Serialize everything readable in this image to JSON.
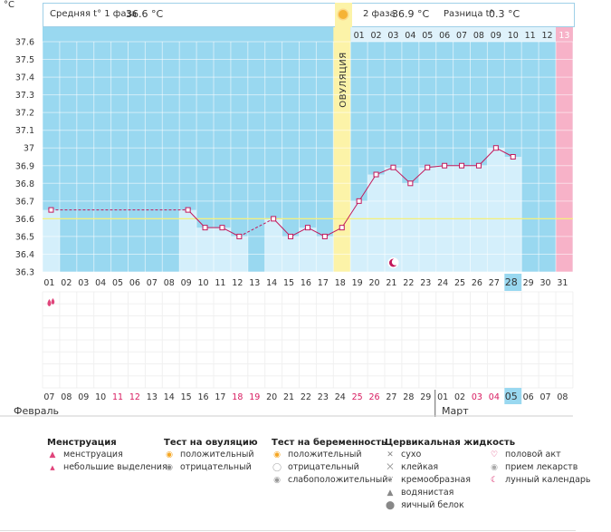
{
  "chart_data": {
    "type": "line",
    "y_unit_label": "°C",
    "ylim": [
      36.3,
      37.6
    ],
    "yticks": [
      "37.6",
      "37.5",
      "37.4",
      "37.3",
      "37.2",
      "37.1",
      "37",
      "36.9",
      "36.8",
      "36.7",
      "36.6",
      "36.5",
      "36.4",
      "36.3"
    ],
    "header": {
      "phase1_label": "Средняя t° 1 фаза",
      "phase1_value": "36.6 °C",
      "phase2_label": "2 фаза",
      "phase2_value": "36.9 °C",
      "diff_label": "Разница t°",
      "diff_value": "0.3 °C"
    },
    "ovulation_label": "ОВУЛЯЦИЯ",
    "ovulation_day": 18,
    "coverline": 36.6,
    "days": [
      "01",
      "02",
      "03",
      "04",
      "05",
      "06",
      "07",
      "08",
      "09",
      "10",
      "11",
      "12",
      "13",
      "14",
      "15",
      "16",
      "17",
      "18",
      "19",
      "20",
      "21",
      "22",
      "23",
      "24",
      "25",
      "26",
      "27",
      "28",
      "29",
      "30",
      "31"
    ],
    "luteal_days": [
      "01",
      "02",
      "03",
      "04",
      "05",
      "06",
      "07",
      "08",
      "09",
      "10",
      "11",
      "12",
      "13"
    ],
    "current_day_index": 27,
    "temperature_values": [
      36.65,
      null,
      null,
      null,
      null,
      null,
      null,
      null,
      36.65,
      36.55,
      36.55,
      36.5,
      null,
      36.6,
      36.5,
      36.55,
      36.5,
      36.55,
      36.7,
      36.85,
      36.89,
      36.8,
      36.89,
      36.9,
      36.9,
      36.9,
      37.0,
      36.95,
      null,
      null,
      null
    ],
    "dates": [
      "07",
      "08",
      "09",
      "10",
      "11",
      "12",
      "13",
      "14",
      "15",
      "16",
      "17",
      "18",
      "19",
      "20",
      "21",
      "22",
      "23",
      "24",
      "25",
      "26",
      "27",
      "28",
      "29",
      "01",
      "02",
      "03",
      "04",
      "05",
      "06",
      "07",
      "08"
    ],
    "weekend_dates_idx": [
      4,
      5,
      11,
      12,
      18,
      19,
      25,
      26
    ],
    "month_feb": "Февраль",
    "month_mar": "Март",
    "menstruation_day_index": 0,
    "lunar_day_index": 20
  },
  "legend": {
    "menstruation": {
      "title": "Менструация",
      "items": [
        "менструация",
        "небольшие выделения"
      ]
    },
    "ovulation_test": {
      "title": "Тест на овуляцию",
      "items": [
        "положительный",
        "отрицательный"
      ]
    },
    "pregnancy_test": {
      "title": "Тест на беременность",
      "items": [
        "положительный",
        "отрицательный",
        "слабоположительный"
      ]
    },
    "cervical": {
      "title": "Цервикальная жидкость",
      "items": [
        "сухо",
        "клейкая",
        "кремообразная",
        "водянистая",
        "яичный белок"
      ]
    },
    "other": {
      "items": [
        "половой акт",
        "прием лекарств",
        "лунный календарь"
      ]
    }
  },
  "colors": {
    "plot_bg": "#99d8f0",
    "bar": "#d4effb",
    "line": "#c2185b",
    "ovulation": "#fcf3a8",
    "period": "#f7b2c8",
    "weekend": "#d81b60",
    "current": "#99d8f0"
  }
}
